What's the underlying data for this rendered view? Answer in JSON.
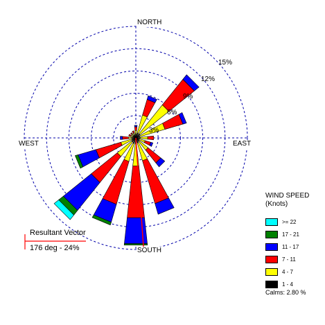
{
  "chart_data": {
    "type": "windrose",
    "directions": [
      "N",
      "NNE",
      "NE",
      "ENE",
      "E",
      "ESE",
      "SE",
      "SSE",
      "S",
      "SSW",
      "SW",
      "WSW",
      "W",
      "WNW",
      "NW",
      "NNW"
    ],
    "direction_labels": {
      "north": "NORTH",
      "east": "EAST",
      "south": "SOUTH",
      "west": "WEST"
    },
    "rings": [
      "3%",
      "6%",
      "9%",
      "12%",
      "15%"
    ],
    "ring_values": [
      3,
      6,
      9,
      12,
      15
    ],
    "max_percent": 15,
    "speed_bins": [
      {
        "label": "1 - 4",
        "color": "#000000"
      },
      {
        "label": "4 - 7",
        "color": "#ffff00"
      },
      {
        "label": "7 - 11",
        "color": "#ff0000"
      },
      {
        "label": "11 - 17",
        "color": "#0000ff"
      },
      {
        "label": "17 - 21",
        "color": "#008000"
      },
      {
        "label": ">= 22",
        "color": "#00ffff"
      }
    ],
    "frequencies": [
      [
        0.5,
        0.5,
        0.5,
        0.2,
        0.0,
        0.0
      ],
      [
        0.7,
        2.5,
        2.2,
        0.5,
        0.0,
        0.0
      ],
      [
        0.7,
        5.0,
        4.4,
        0.8,
        0.0,
        0.0
      ],
      [
        0.6,
        3.5,
        2.5,
        0.5,
        0.0,
        0.0
      ],
      [
        0.6,
        1.0,
        0.8,
        0.0,
        0.0,
        0.0
      ],
      [
        0.5,
        0.8,
        0.8,
        0.3,
        0.0,
        0.0
      ],
      [
        0.6,
        1.5,
        2.2,
        0.7,
        0.0,
        0.0
      ],
      [
        0.7,
        2.5,
        6.0,
        1.5,
        0.0,
        0.0
      ],
      [
        0.8,
        3.0,
        7.0,
        3.5,
        0.2,
        0.0
      ],
      [
        0.8,
        2.5,
        6.0,
        2.5,
        0.4,
        0.0
      ],
      [
        0.7,
        2.5,
        4.5,
        4.8,
        0.8,
        0.8
      ],
      [
        0.6,
        1.5,
        3.5,
        2.5,
        0.4,
        0.0
      ],
      [
        0.5,
        0.5,
        0.8,
        0.3,
        0.0,
        0.0
      ],
      [
        0.4,
        0.3,
        0.3,
        0.0,
        0.0,
        0.0
      ],
      [
        0.4,
        0.3,
        0.2,
        0.0,
        0.0,
        0.0
      ],
      [
        0.4,
        0.3,
        0.3,
        0.0,
        0.0,
        0.0
      ]
    ],
    "resultant_vector": {
      "title": "Resultant Vector",
      "label": "176 deg - 24%",
      "direction_deg": 176
    }
  },
  "legend": {
    "title_line1": "WIND SPEED",
    "title_line2": "(Knots)",
    "items": [
      {
        "label": ">= 22",
        "color": "#00ffff"
      },
      {
        "label": "17 - 21",
        "color": "#008000"
      },
      {
        "label": "11 - 17",
        "color": "#0000ff"
      },
      {
        "label": "7 - 11",
        "color": "#ff0000"
      },
      {
        "label": "4 - 7",
        "color": "#ffff00"
      },
      {
        "label": "1 - 4",
        "color": "#000000"
      }
    ],
    "calms": "Calms: 2.80 %"
  }
}
